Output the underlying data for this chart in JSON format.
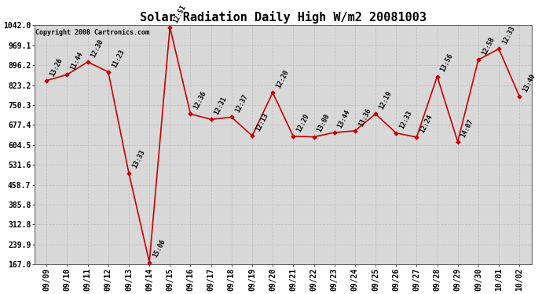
{
  "title": "Solar Radiation Daily High W/m2 20081003",
  "copyright": "Copyright 2008 Cartronics.com",
  "x_labels": [
    "09/09",
    "09/10",
    "09/11",
    "09/12",
    "09/13",
    "09/14",
    "09/15",
    "09/16",
    "09/17",
    "09/18",
    "09/19",
    "09/20",
    "09/21",
    "09/22",
    "09/23",
    "09/24",
    "09/25",
    "09/26",
    "09/27",
    "09/28",
    "09/29",
    "09/30",
    "10/01",
    "10/02"
  ],
  "y_values": [
    840,
    862,
    908,
    872,
    502,
    175,
    1035,
    718,
    698,
    706,
    638,
    796,
    636,
    634,
    650,
    656,
    718,
    648,
    633,
    855,
    616,
    916,
    956,
    782
  ],
  "time_labels": [
    "13:26",
    "11:44",
    "12:30",
    "11:23",
    "13:33",
    "15:06",
    "12:51",
    "12:36",
    "12:31",
    "12:37",
    "12:13",
    "12:20",
    "12:29",
    "13:00",
    "13:44",
    "13:36",
    "12:19",
    "12:33",
    "12:24",
    "13:56",
    "14:07",
    "12:58",
    "12:33",
    "13:40"
  ],
  "y_min": 167.0,
  "y_max": 1042.0,
  "y_ticks": [
    167.0,
    239.9,
    312.8,
    385.8,
    458.7,
    531.6,
    604.5,
    677.4,
    750.3,
    823.2,
    896.2,
    969.1,
    1042.0
  ],
  "y_tick_labels": [
    "167.0",
    "239.9",
    "312.8",
    "385.8",
    "458.7",
    "531.6",
    "604.5",
    "677.4",
    "750.3",
    "823.2",
    "896.2",
    "969.1",
    "1042.0"
  ],
  "line_color": "#cc0000",
  "marker_color": "#cc0000",
  "bg_color": "#ffffff",
  "grid_color": "#c0c0c0",
  "plot_bg_color": "#d8d8d8",
  "title_fontsize": 11,
  "label_fontsize": 6,
  "tick_fontsize": 7,
  "copyright_fontsize": 6,
  "label_rotation": 63
}
